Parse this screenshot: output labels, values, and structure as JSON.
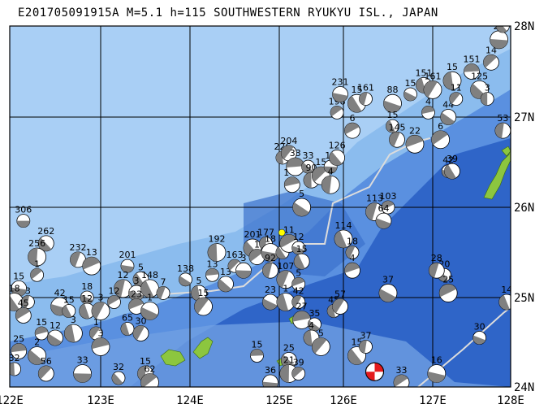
{
  "title": "E201705091915A M=5.1 h=115 SOUTHWESTERN RYUKYU ISL., JAPAN",
  "axes": {
    "lon_labels": [
      "122E",
      "123E",
      "124E",
      "125E",
      "126E",
      "127E",
      "128E"
    ],
    "lat_labels": [
      "28N",
      "27N",
      "26N",
      "25N",
      "24N"
    ]
  },
  "colors": {
    "deep_ocean": "#2a5fc4",
    "mid_ocean": "#4c86db",
    "shallow_shelf": "#8fbff0",
    "land": "#8cc63f",
    "grid": "#000000",
    "plate_boundary": "#d8d8d8",
    "event_fill": "#e41a1c",
    "mechanism_fill": "#808080"
  },
  "main_event": {
    "lon": 126.35,
    "lat": 24.17,
    "symbol": "red-beachball"
  },
  "epicenter_marker": {
    "lon": 125.04,
    "lat": 25.72,
    "color": "#ffff00"
  },
  "focal_mechanisms": [
    {
      "lon": 122.15,
      "lat": 25.85,
      "label": "306"
    },
    {
      "lon": 122.4,
      "lat": 25.6,
      "label": "262"
    },
    {
      "lon": 122.3,
      "lat": 25.45,
      "label": "256"
    },
    {
      "lon": 122.3,
      "lat": 25.25,
      "label": "1"
    },
    {
      "lon": 122.1,
      "lat": 25.1,
      "label": "15"
    },
    {
      "lon": 122.05,
      "lat": 24.95,
      "label": "18"
    },
    {
      "lon": 122.2,
      "lat": 24.95,
      "label": "3"
    },
    {
      "lon": 122.15,
      "lat": 24.8,
      "label": "45"
    },
    {
      "lon": 122.55,
      "lat": 24.9,
      "label": "42"
    },
    {
      "lon": 122.65,
      "lat": 24.85,
      "label": "15"
    },
    {
      "lon": 122.75,
      "lat": 25.42,
      "label": "232"
    },
    {
      "lon": 122.9,
      "lat": 25.35,
      "label": "13"
    },
    {
      "lon": 122.85,
      "lat": 25.0,
      "label": "18"
    },
    {
      "lon": 122.85,
      "lat": 24.85,
      "label": "12"
    },
    {
      "lon": 123.0,
      "lat": 24.85,
      "label": "3"
    },
    {
      "lon": 122.35,
      "lat": 24.6,
      "label": "15"
    },
    {
      "lon": 122.5,
      "lat": 24.55,
      "label": "12"
    },
    {
      "lon": 122.7,
      "lat": 24.6,
      "label": "3"
    },
    {
      "lon": 122.95,
      "lat": 24.6,
      "label": "1"
    },
    {
      "lon": 122.1,
      "lat": 24.4,
      "label": "25"
    },
    {
      "lon": 122.3,
      "lat": 24.35,
      "label": "2"
    },
    {
      "lon": 122.05,
      "lat": 24.2,
      "label": "32"
    },
    {
      "lon": 122.4,
      "lat": 24.15,
      "label": "56"
    },
    {
      "lon": 122.8,
      "lat": 24.15,
      "label": "33"
    },
    {
      "lon": 123.2,
      "lat": 24.1,
      "label": "32"
    },
    {
      "lon": 123.5,
      "lat": 24.15,
      "label": "15"
    },
    {
      "lon": 123.55,
      "lat": 24.05,
      "label": "62"
    },
    {
      "lon": 123.3,
      "lat": 25.35,
      "label": "201"
    },
    {
      "lon": 123.45,
      "lat": 25.2,
      "label": "5"
    },
    {
      "lon": 123.25,
      "lat": 25.1,
      "label": "12"
    },
    {
      "lon": 123.15,
      "lat": 24.95,
      "label": "12"
    },
    {
      "lon": 123.4,
      "lat": 25.05,
      "label": "3"
    },
    {
      "lon": 123.55,
      "lat": 25.1,
      "label": "148"
    },
    {
      "lon": 123.7,
      "lat": 25.05,
      "label": "7"
    },
    {
      "lon": 123.4,
      "lat": 24.9,
      "label": "23"
    },
    {
      "lon": 123.55,
      "lat": 24.85,
      "label": "1"
    },
    {
      "lon": 123.3,
      "lat": 24.65,
      "label": "65"
    },
    {
      "lon": 123.45,
      "lat": 24.6,
      "label": "30"
    },
    {
      "lon": 123.0,
      "lat": 24.45,
      "label": "3"
    },
    {
      "lon": 123.95,
      "lat": 25.2,
      "label": "138"
    },
    {
      "lon": 124.1,
      "lat": 25.05,
      "label": "5"
    },
    {
      "lon": 124.15,
      "lat": 24.9,
      "label": "15"
    },
    {
      "lon": 124.25,
      "lat": 25.25,
      "label": "13"
    },
    {
      "lon": 124.4,
      "lat": 25.15,
      "label": "13"
    },
    {
      "lon": 124.3,
      "lat": 25.5,
      "label": "192"
    },
    {
      "lon": 124.5,
      "lat": 25.35,
      "label": "163"
    },
    {
      "lon": 124.6,
      "lat": 25.3,
      "label": "3"
    },
    {
      "lon": 124.7,
      "lat": 25.55,
      "label": "201"
    },
    {
      "lon": 124.85,
      "lat": 25.6,
      "label": "177"
    },
    {
      "lon": 124.75,
      "lat": 25.45,
      "label": "1"
    },
    {
      "lon": 124.9,
      "lat": 25.5,
      "label": "18"
    },
    {
      "lon": 125.05,
      "lat": 25.5,
      "label": "1"
    },
    {
      "lon": 124.9,
      "lat": 25.3,
      "label": "92"
    },
    {
      "lon": 125.15,
      "lat": 25.6,
      "label": "11"
    },
    {
      "lon": 125.3,
      "lat": 25.55,
      "label": "12"
    },
    {
      "lon": 125.35,
      "lat": 25.4,
      "label": "15"
    },
    {
      "lon": 125.1,
      "lat": 25.2,
      "label": "107"
    },
    {
      "lon": 125.3,
      "lat": 25.15,
      "label": "5"
    },
    {
      "lon": 124.9,
      "lat": 24.95,
      "label": "23"
    },
    {
      "lon": 125.1,
      "lat": 24.95,
      "label": "1"
    },
    {
      "lon": 125.3,
      "lat": 24.95,
      "label": "42"
    },
    {
      "lon": 125.2,
      "lat": 26.25,
      "label": "148"
    },
    {
      "lon": 125.35,
      "lat": 26.0,
      "label": "5"
    },
    {
      "lon": 125.05,
      "lat": 26.55,
      "label": "226"
    },
    {
      "lon": 125.15,
      "lat": 26.6,
      "label": "204"
    },
    {
      "lon": 125.25,
      "lat": 26.45,
      "label": "33"
    },
    {
      "lon": 125.45,
      "lat": 26.45,
      "label": "33"
    },
    {
      "lon": 125.5,
      "lat": 26.3,
      "label": "90"
    },
    {
      "lon": 125.65,
      "lat": 26.35,
      "label": "15"
    },
    {
      "lon": 125.8,
      "lat": 26.45,
      "label": "15"
    },
    {
      "lon": 125.9,
      "lat": 26.55,
      "label": "126"
    },
    {
      "lon": 125.8,
      "lat": 26.25,
      "label": "4"
    },
    {
      "lon": 125.9,
      "lat": 27.05,
      "label": "198"
    },
    {
      "lon": 125.95,
      "lat": 27.25,
      "label": "231"
    },
    {
      "lon": 126.15,
      "lat": 27.15,
      "label": "15"
    },
    {
      "lon": 126.25,
      "lat": 27.2,
      "label": "161"
    },
    {
      "lon": 126.1,
      "lat": 26.85,
      "label": "6"
    },
    {
      "lon": 126.55,
      "lat": 27.15,
      "label": "88"
    },
    {
      "lon": 126.55,
      "lat": 26.9,
      "label": "15"
    },
    {
      "lon": 126.6,
      "lat": 26.75,
      "label": "145"
    },
    {
      "lon": 126.8,
      "lat": 26.7,
      "label": "22"
    },
    {
      "lon": 126.75,
      "lat": 27.25,
      "label": "15"
    },
    {
      "lon": 126.9,
      "lat": 27.35,
      "label": "151"
    },
    {
      "lon": 127.0,
      "lat": 27.3,
      "label": "161"
    },
    {
      "lon": 126.95,
      "lat": 27.05,
      "label": "4"
    },
    {
      "lon": 127.2,
      "lat": 27.0,
      "label": "44"
    },
    {
      "lon": 127.25,
      "lat": 27.4,
      "label": "15"
    },
    {
      "lon": 127.3,
      "lat": 27.2,
      "label": "11"
    },
    {
      "lon": 127.5,
      "lat": 27.5,
      "label": "151"
    },
    {
      "lon": 127.6,
      "lat": 27.3,
      "label": "125"
    },
    {
      "lon": 127.7,
      "lat": 27.2,
      "label": "3"
    },
    {
      "lon": 127.75,
      "lat": 27.6,
      "label": "14"
    },
    {
      "lon": 127.85,
      "lat": 27.85,
      "label": "25"
    },
    {
      "lon": 127.9,
      "lat": 28.0,
      "label": "27"
    },
    {
      "lon": 127.9,
      "lat": 26.85,
      "label": "53"
    },
    {
      "lon": 127.1,
      "lat": 26.75,
      "label": "6"
    },
    {
      "lon": 127.2,
      "lat": 26.4,
      "label": "42"
    },
    {
      "lon": 127.25,
      "lat": 26.4,
      "label": "39"
    },
    {
      "lon": 126.35,
      "lat": 25.95,
      "label": "113"
    },
    {
      "lon": 126.5,
      "lat": 26.0,
      "label": "103"
    },
    {
      "lon": 126.45,
      "lat": 25.85,
      "label": "64"
    },
    {
      "lon": 126.0,
      "lat": 25.65,
      "label": "114"
    },
    {
      "lon": 126.1,
      "lat": 25.5,
      "label": "18"
    },
    {
      "lon": 126.1,
      "lat": 25.3,
      "label": "4"
    },
    {
      "lon": 126.5,
      "lat": 25.05,
      "label": "37"
    },
    {
      "lon": 125.85,
      "lat": 24.85,
      "label": "45"
    },
    {
      "lon": 125.95,
      "lat": 24.9,
      "label": "57"
    },
    {
      "lon": 125.35,
      "lat": 24.75,
      "label": "27"
    },
    {
      "lon": 125.55,
      "lat": 24.7,
      "label": "35"
    },
    {
      "lon": 125.5,
      "lat": 24.55,
      "label": "4"
    },
    {
      "lon": 125.65,
      "lat": 24.45,
      "label": "5"
    },
    {
      "lon": 124.75,
      "lat": 24.35,
      "label": "15"
    },
    {
      "lon": 125.15,
      "lat": 24.3,
      "label": "25"
    },
    {
      "lon": 125.15,
      "lat": 24.15,
      "label": "21"
    },
    {
      "lon": 125.3,
      "lat": 24.15,
      "label": "39"
    },
    {
      "lon": 124.9,
      "lat": 24.05,
      "label": "36"
    },
    {
      "lon": 126.15,
      "lat": 24.35,
      "label": "15"
    },
    {
      "lon": 126.25,
      "lat": 24.45,
      "label": "37"
    },
    {
      "lon": 126.65,
      "lat": 24.05,
      "label": "33"
    },
    {
      "lon": 127.05,
      "lat": 24.15,
      "label": "16"
    },
    {
      "lon": 127.15,
      "lat": 25.25,
      "label": "20"
    },
    {
      "lon": 127.05,
      "lat": 25.3,
      "label": "28"
    },
    {
      "lon": 127.2,
      "lat": 25.05,
      "label": "25"
    },
    {
      "lon": 127.6,
      "lat": 24.55,
      "label": "30"
    },
    {
      "lon": 127.95,
      "lat": 24.95,
      "label": "14"
    }
  ]
}
